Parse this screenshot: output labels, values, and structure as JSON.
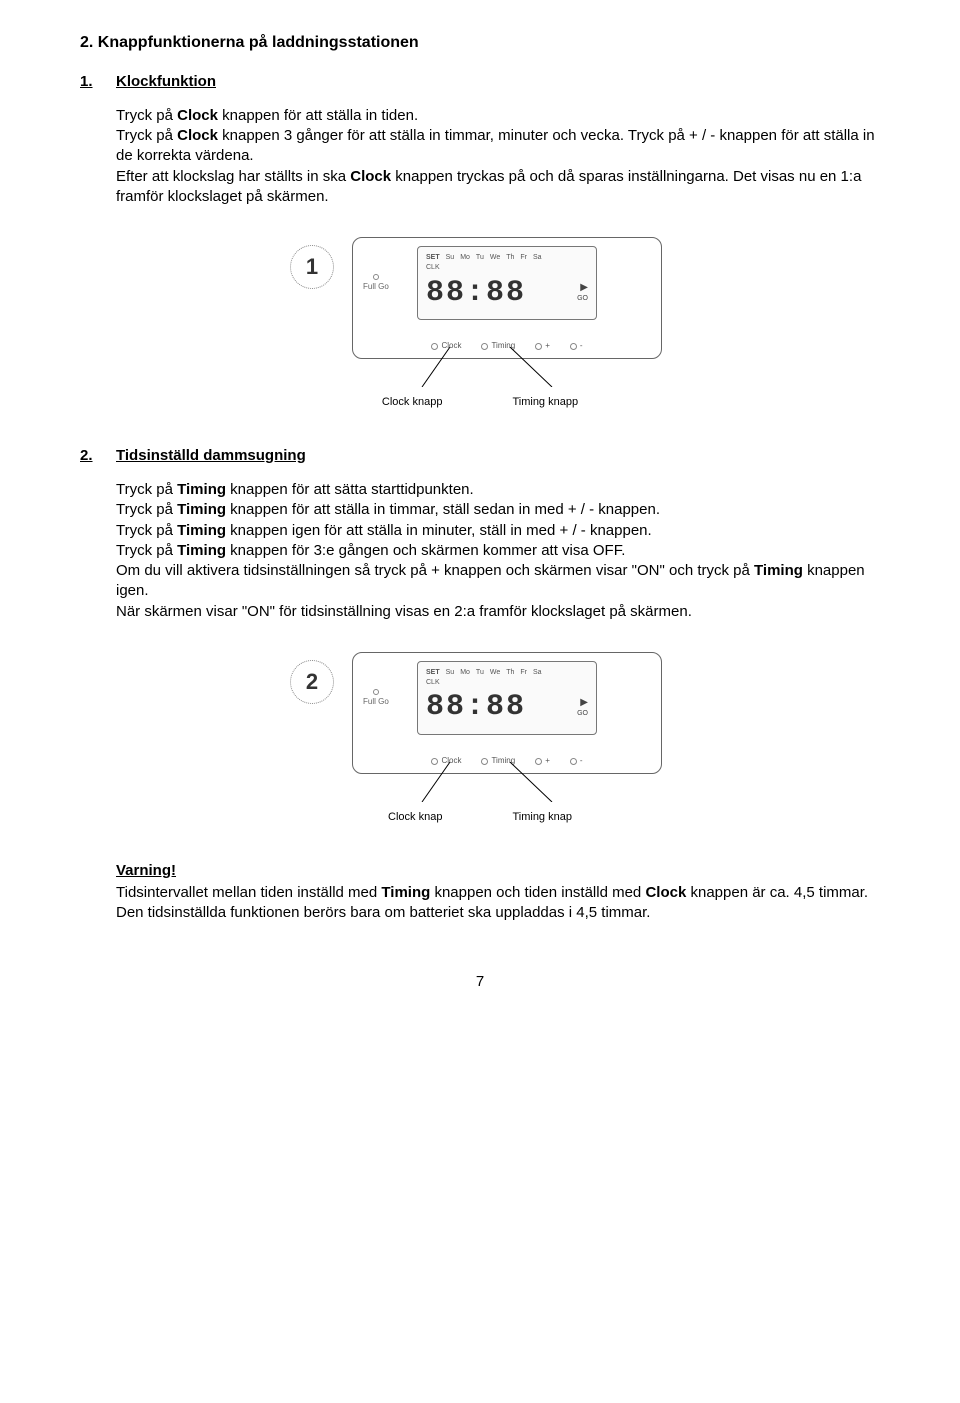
{
  "section_heading": "2. Knappfunktionerna på laddningsstationen",
  "sub1": {
    "num": "1.",
    "title": "Klockfunktion",
    "para": [
      "Tryck på ",
      {
        "b": "Clock"
      },
      " knappen för att ställa in tiden.",
      "\nTryck på ",
      {
        "b": "Clock"
      },
      " knappen 3 gånger för att ställa in timmar, minuter och vecka. Tryck på + / - knappen för att ställa in de korrekta värdena.",
      "\nEfter att klockslag har ställts in ska ",
      {
        "b": "Clock"
      },
      " knappen tryckas på och då sparas inställningarna. Det visas nu en 1:a framför klockslaget på skärmen."
    ]
  },
  "fig1": {
    "bubble": "1",
    "days": [
      "SET",
      "Su",
      "Mo",
      "Tu",
      "We",
      "Th",
      "Fr",
      "Sa"
    ],
    "clk": "CLK",
    "digits": "88:88",
    "go": "GO",
    "full_go": "Full Go",
    "btns": [
      "Clock",
      "Timing",
      "+",
      "-"
    ],
    "caption_left": "Clock knapp",
    "caption_right": "Timing knapp"
  },
  "sub2": {
    "num": "2.",
    "title": "Tidsinställd dammsugning",
    "para": [
      "Tryck på ",
      {
        "b": "Timing"
      },
      " knappen för att sätta starttidpunkten.",
      "\nTryck på ",
      {
        "b": "Timing"
      },
      " knappen för att ställa in timmar, ställ sedan in med + / - knappen.",
      "\nTryck på ",
      {
        "b": "Timing"
      },
      " knappen igen för att ställa in minuter, ställ in med + / - knappen.",
      "\nTryck på ",
      {
        "b": "Timing"
      },
      " knappen för 3:e gången och skärmen kommer att visa OFF.",
      "\nOm du vill aktivera tidsinställningen så tryck på + knappen och skärmen visar \"ON\" och tryck på ",
      {
        "b": "Timing"
      },
      " knappen igen.",
      "\nNär skärmen visar \"ON\" för tidsinställning visas en 2:a framför klockslaget på skärmen."
    ]
  },
  "fig2": {
    "bubble": "2",
    "caption_left": "Clock knap",
    "caption_right": "Timing knap"
  },
  "warning": {
    "title": "Varning!",
    "para": [
      "Tidsintervallet mellan tiden inställd med ",
      {
        "b": "Timing"
      },
      " knappen och tiden inställd med ",
      {
        "b": "Clock"
      },
      " knappen är ca. 4,5 timmar. Den tidsinställda funktionen berörs bara om batteriet ska uppladdas i 4,5 timmar."
    ]
  },
  "page_number": "7"
}
